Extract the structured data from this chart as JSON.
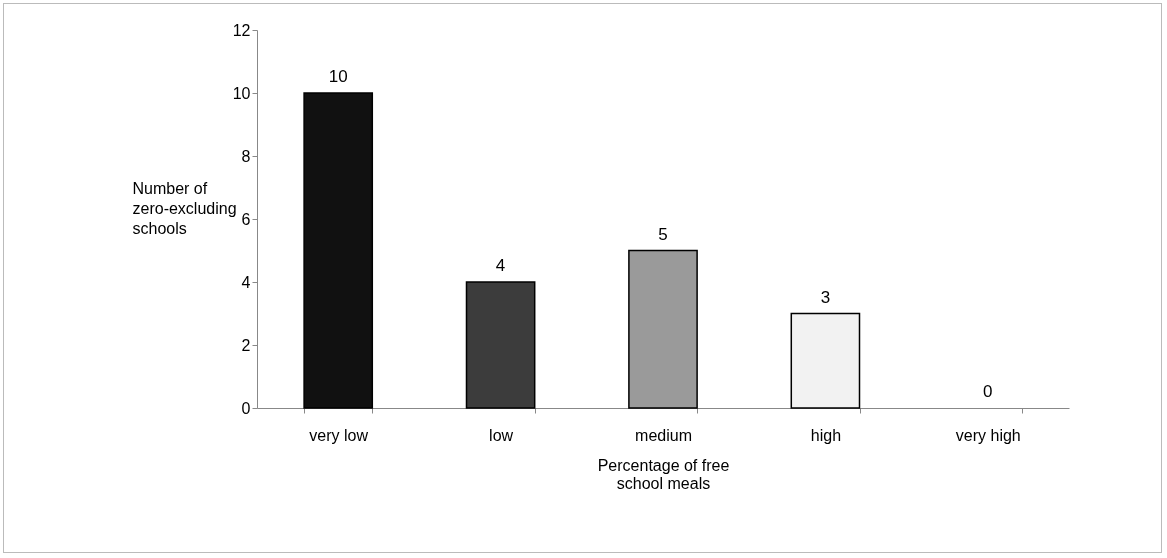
{
  "chart_data": {
    "type": "bar",
    "xlabel": "Percentage of free school meals",
    "ylabel": "Number of zero-excluding schools",
    "categories": [
      "very low",
      "low",
      "medium",
      "high",
      "very high"
    ],
    "values": [
      10,
      4,
      5,
      3,
      0
    ],
    "colors": [
      "#111111",
      "#3c3c3c",
      "#9a9a9a",
      "#f2f2f2",
      "#ffffff"
    ],
    "ylim": [
      0,
      12
    ],
    "yticks": [
      0,
      2,
      4,
      6,
      8,
      10,
      12
    ],
    "grid": false,
    "legend": false,
    "data_labels": true
  }
}
